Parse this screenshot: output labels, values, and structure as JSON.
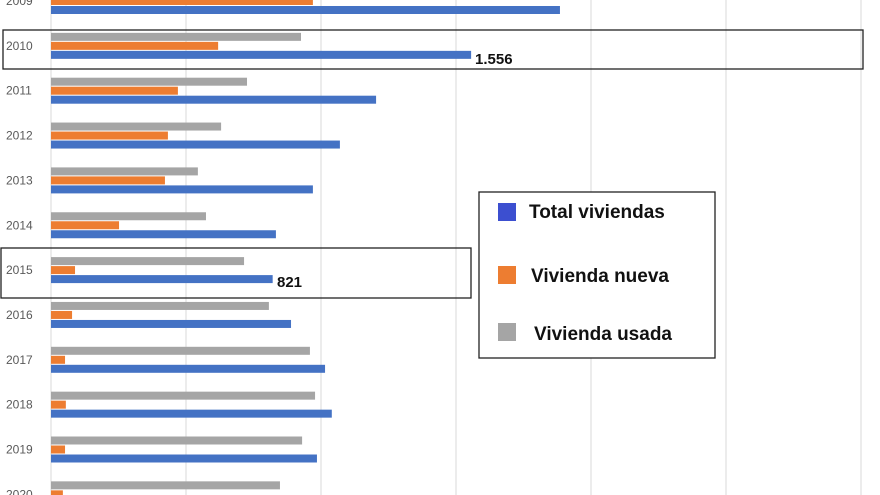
{
  "chart_data": {
    "type": "bar",
    "orientation": "horizontal",
    "categories": [
      "2009",
      "2010",
      "2011",
      "2012",
      "2013",
      "2014",
      "2015",
      "2016",
      "2017",
      "2018",
      "2019",
      "2020"
    ],
    "series": [
      {
        "name": "Total viviendas",
        "color": "#4472C4",
        "values": [
          1885,
          1556,
          1204,
          1070,
          970,
          833,
          821,
          889,
          1015,
          1040,
          985,
          null
        ]
      },
      {
        "name": "Vivienda nueva",
        "color": "#ED7D31",
        "values": [
          970,
          619,
          470,
          433,
          422,
          252,
          89,
          78,
          52,
          55,
          52,
          44
        ]
      },
      {
        "name": "Vivienda usada",
        "color": "#A5A5A5",
        "values": [
          null,
          926,
          726,
          630,
          544,
          574,
          715,
          807,
          959,
          978,
          930,
          848
        ]
      }
    ],
    "annotations": [
      {
        "category": "2010",
        "series": "Total viviendas",
        "label": "1.556",
        "highlighted": true
      },
      {
        "category": "2015",
        "series": "Total viviendas",
        "label": "821",
        "highlighted": true
      }
    ],
    "xlim": [
      0,
      3000
    ],
    "grid": true,
    "grid_step": 500,
    "legend_position": "right-center",
    "title": "",
    "xlabel": "",
    "ylabel": ""
  }
}
